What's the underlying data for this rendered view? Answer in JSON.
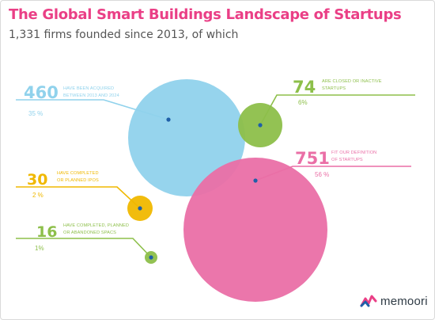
{
  "title": "The Global Smart Buildings Landscape of Startups",
  "subtitle": "1,331 firms founded since 2013, of which",
  "brand": "memoori",
  "colors": {
    "title": "#ea3f86",
    "blue": "#90d2ec",
    "green": "#8dbf4a",
    "pink": "#ea6fa6",
    "yellow": "#f0b800",
    "dark_blue": "#1f5fa8"
  },
  "chart_data": {
    "type": "bubble",
    "total": 1331,
    "series": [
      {
        "key": "acquired",
        "value": "460",
        "label_lines": [
          "HAVE BEEN ACQUIRED",
          "BETWEEN 2013 AND 2024"
        ],
        "percent": "35 %",
        "color": "#90d2ec"
      },
      {
        "key": "closed",
        "value": "74",
        "label_lines": [
          "ARE CLOSED OR INACTIVE",
          "STARTUPS"
        ],
        "percent": "6%",
        "color": "#8dbf4a"
      },
      {
        "key": "startups",
        "value": "751",
        "label_lines": [
          "FIT OUR DEFINITION",
          "OF STARTUPS"
        ],
        "percent": "56 %",
        "color": "#ea6fa6"
      },
      {
        "key": "ipos",
        "value": "30",
        "label_lines": [
          "HAVE COMPLETED",
          "OR PLANNED IPOS"
        ],
        "percent": "2 %",
        "color": "#f0b800"
      },
      {
        "key": "spacs",
        "value": "16",
        "label_lines": [
          "HAVE COMPLETED, PLANNED",
          "OR ABANDONED SPACS"
        ],
        "percent": "1%",
        "color": "#8dbf4a"
      }
    ]
  }
}
